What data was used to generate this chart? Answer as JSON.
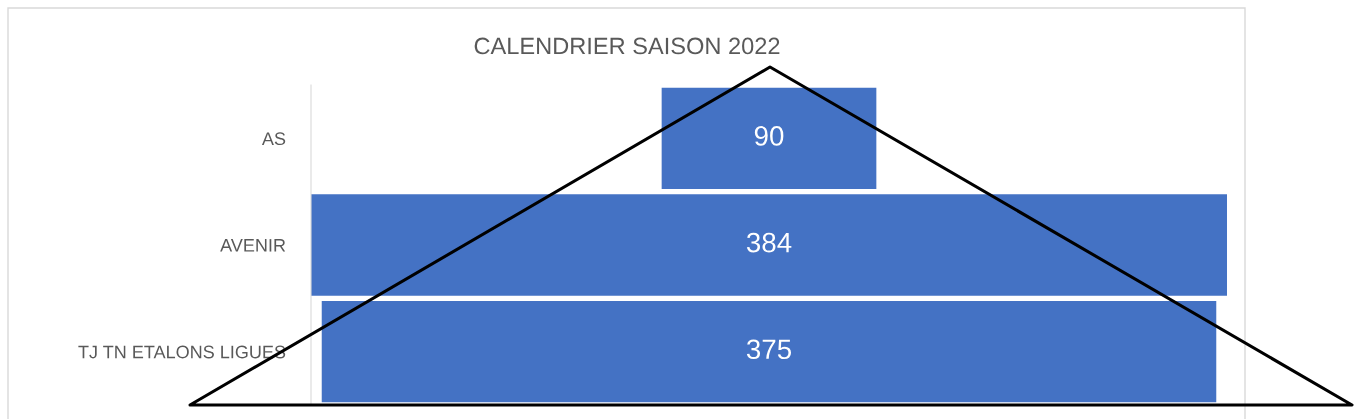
{
  "chart_data": {
    "type": "other",
    "title": "CALENDRIER SAISON 2022",
    "categories": [
      "AS",
      "AVENIR",
      "TJ TN ETALONS LIGUES"
    ],
    "values": [
      90,
      384,
      375
    ],
    "color": "#4472c4",
    "data_labels": true
  }
}
